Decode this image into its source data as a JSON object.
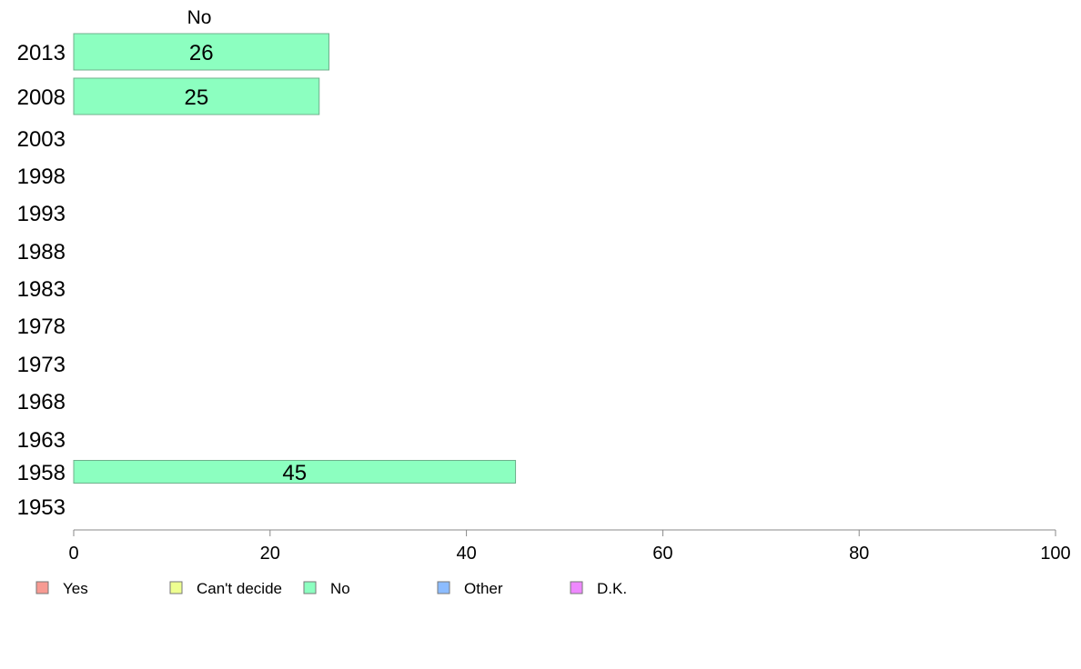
{
  "chart_data": {
    "type": "bar",
    "orientation": "horizontal",
    "column_header": "No",
    "categories": [
      "2013",
      "2008",
      "2003",
      "1998",
      "1993",
      "1988",
      "1983",
      "1978",
      "1973",
      "1968",
      "1963",
      "1958",
      "1953"
    ],
    "series": [
      {
        "name": "No",
        "color": "#8cffc0",
        "values": [
          26,
          25,
          null,
          null,
          null,
          null,
          null,
          null,
          null,
          null,
          null,
          45,
          null
        ]
      }
    ],
    "bar_labels": [
      "26",
      "25",
      "",
      "",
      "",
      "",
      "",
      "",
      "",
      "",
      "",
      "45",
      ""
    ],
    "xlim": [
      0,
      100
    ],
    "xticks": [
      0,
      20,
      40,
      60,
      80,
      100
    ],
    "legend": {
      "placement": "bottom",
      "entries": [
        {
          "label": "Yes",
          "color": "#f79a92"
        },
        {
          "label": "Can't decide",
          "color": "#eeff90"
        },
        {
          "label": "No",
          "color": "#8cffc0"
        },
        {
          "label": "Other",
          "color": "#8cbcff"
        },
        {
          "label": "D.K.",
          "color": "#ee88ff"
        }
      ]
    },
    "grid": false
  }
}
